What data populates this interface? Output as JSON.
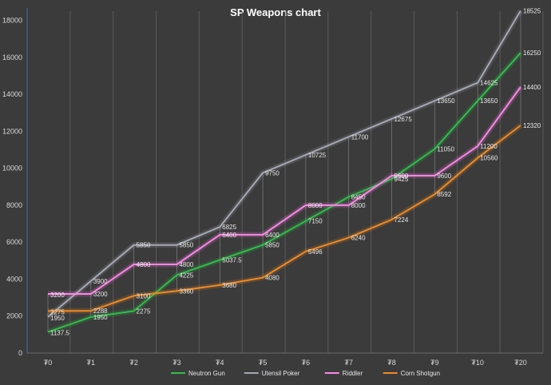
{
  "chart_data": {
    "type": "line",
    "title": "SP Weapons chart",
    "categories": [
      "₮0",
      "₮1",
      "₮2",
      "₮3",
      "₮4",
      "₮5",
      "₮6",
      "₮7",
      "₮8",
      "₮9",
      "₮10",
      "₮20"
    ],
    "ylim": [
      0,
      18500
    ],
    "yticks": [
      0,
      2000,
      4000,
      6000,
      8000,
      10000,
      12000,
      14000,
      16000,
      18000
    ],
    "grid": "vertical",
    "legend_position": "bottom",
    "series": [
      {
        "name": "Neutron Gun",
        "color": "#2fbe49",
        "values": [
          1137.5,
          1950,
          2275,
          4225,
          5037.5,
          5850,
          7150,
          8450,
          9425,
          11050,
          13650,
          16250
        ],
        "labels": [
          "1137.5",
          "1950",
          "2275",
          "4225",
          "5037.5",
          "5850",
          "7150",
          "8450",
          "9425",
          "11050",
          "13650",
          "16250"
        ]
      },
      {
        "name": "Utensil Poker",
        "color": "#a5a9b4",
        "values": [
          1950,
          3900,
          5850,
          5850,
          6825,
          9750,
          10725,
          11700,
          12675,
          13650,
          14625,
          18525
        ],
        "labels": [
          "1950",
          "3900",
          "5850",
          "5850",
          "6825",
          "9750",
          "10725",
          "11700",
          "12675",
          "13650",
          "14625",
          "18525"
        ]
      },
      {
        "name": "Riddler",
        "color": "#ff85ea",
        "values": [
          3200,
          3200,
          4800,
          4800,
          6400,
          6400,
          8000,
          8000,
          9600,
          9600,
          11200,
          14400
        ],
        "labels": [
          "3200",
          "3200",
          "4800",
          "4800",
          "6400",
          "6400",
          "8000",
          "8000",
          "9600",
          "9600",
          "11200",
          "14400"
        ]
      },
      {
        "name": "Corn Shotgun",
        "color": "#f08a24",
        "values": [
          2275,
          2288,
          3100,
          3360,
          3680,
          4080,
          5496,
          6240,
          7224,
          8592,
          10560,
          12320
        ],
        "labels": [
          "2275",
          "2288",
          "3100",
          "3360",
          "3680",
          "4080",
          "5496",
          "6240",
          "7224",
          "8592",
          "10560",
          "12320"
        ]
      }
    ]
  }
}
